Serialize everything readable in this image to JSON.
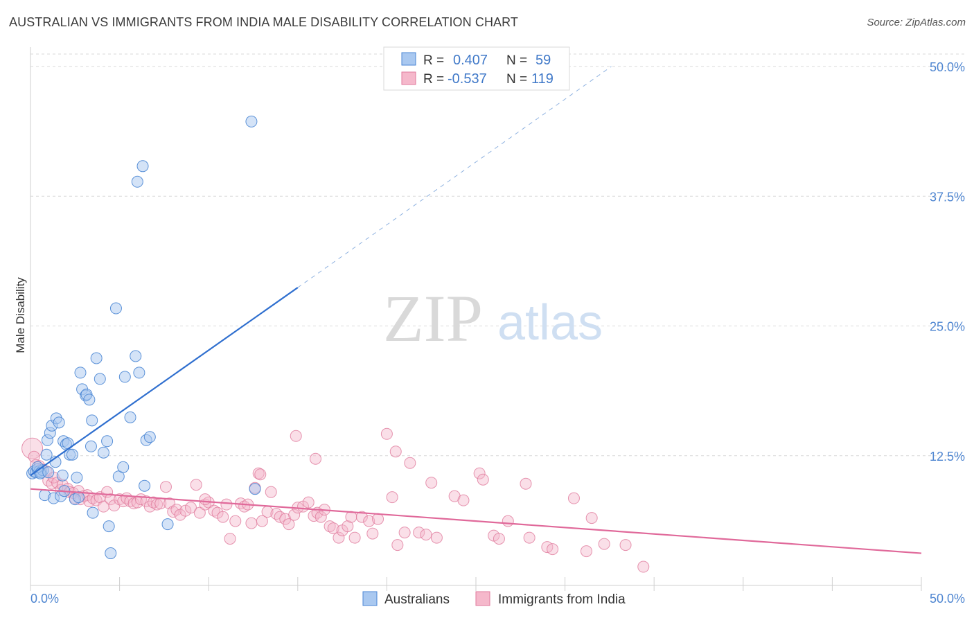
{
  "title": "AUSTRALIAN VS IMMIGRANTS FROM INDIA MALE DISABILITY CORRELATION CHART",
  "source": "Source: ZipAtlas.com",
  "watermark": {
    "zip": "ZIP",
    "atlas": "atlas"
  },
  "colors": {
    "blue_fill": "#a9c8f0",
    "blue_stroke": "#4a86d4",
    "blue_line": "#2f6fcf",
    "pink_fill": "#f5b8cb",
    "pink_stroke": "#e07a9c",
    "pink_line": "#e0699a",
    "tick_text": "#4f86d1",
    "grid": "#d8d8d8"
  },
  "legend": {
    "row1": {
      "r_label": "R =",
      "r_value": "0.407",
      "n_label": "N =",
      "n_value": "59"
    },
    "row2": {
      "r_label": "R =",
      "r_value": "-0.537",
      "n_label": "N =",
      "n_value": "119"
    }
  },
  "bottom_legend": {
    "series1": "Australians",
    "series2": "Immigrants from India"
  },
  "chart_data": {
    "type": "scatter",
    "title": "AUSTRALIAN VS IMMIGRANTS FROM INDIA MALE DISABILITY CORRELATION CHART",
    "xlabel": "",
    "ylabel": "Male Disability",
    "xlim": [
      0,
      50
    ],
    "ylim": [
      0,
      50
    ],
    "x_tick_labels": [
      "0.0%",
      "50.0%"
    ],
    "y_ticks": [
      12.5,
      25.0,
      37.5,
      50.0
    ],
    "y_tick_labels": [
      "12.5%",
      "25.0%",
      "37.5%",
      "50.0%"
    ],
    "grid": true,
    "legend_position": "top-center",
    "series": [
      {
        "name": "Australians",
        "r": 0.407,
        "n": 59,
        "trend": {
          "x0": 0,
          "y0": 10.6,
          "x1": 15,
          "y1": 28.7,
          "dashed_to_x": 32.6,
          "dashed_to_y": 50.0
        },
        "points": [
          [
            0.1,
            10.8
          ],
          [
            0.2,
            11.0
          ],
          [
            0.3,
            10.9
          ],
          [
            0.4,
            11.2
          ],
          [
            0.5,
            11.0
          ],
          [
            0.6,
            10.9
          ],
          [
            0.7,
            11.1
          ],
          [
            0.4,
            11.4
          ],
          [
            0.8,
            8.7
          ],
          [
            0.9,
            12.6
          ],
          [
            0.95,
            14.0
          ],
          [
            1.1,
            14.7
          ],
          [
            1.2,
            15.4
          ],
          [
            1.3,
            8.4
          ],
          [
            1.4,
            11.9
          ],
          [
            1.45,
            16.1
          ],
          [
            1.6,
            15.7
          ],
          [
            1.7,
            8.6
          ],
          [
            1.8,
            10.6
          ],
          [
            1.9,
            9.1
          ],
          [
            1.85,
            13.9
          ],
          [
            2.0,
            13.6
          ],
          [
            2.1,
            13.7
          ],
          [
            2.2,
            12.6
          ],
          [
            2.35,
            12.6
          ],
          [
            2.5,
            8.3
          ],
          [
            2.6,
            10.4
          ],
          [
            2.7,
            8.5
          ],
          [
            2.8,
            20.5
          ],
          [
            2.9,
            18.9
          ],
          [
            3.1,
            18.3
          ],
          [
            3.15,
            18.4
          ],
          [
            3.3,
            17.9
          ],
          [
            3.45,
            15.9
          ],
          [
            3.4,
            13.4
          ],
          [
            3.5,
            7.0
          ],
          [
            3.7,
            21.9
          ],
          [
            3.9,
            19.9
          ],
          [
            4.1,
            12.8
          ],
          [
            4.3,
            13.9
          ],
          [
            4.4,
            5.7
          ],
          [
            4.5,
            3.1
          ],
          [
            4.8,
            26.7
          ],
          [
            4.95,
            10.5
          ],
          [
            5.2,
            11.4
          ],
          [
            5.3,
            20.1
          ],
          [
            5.6,
            16.2
          ],
          [
            5.9,
            22.1
          ],
          [
            6.1,
            20.5
          ],
          [
            6.0,
            38.9
          ],
          [
            6.3,
            40.4
          ],
          [
            6.4,
            9.6
          ],
          [
            6.5,
            14.0
          ],
          [
            6.7,
            14.3
          ],
          [
            7.7,
            5.9
          ],
          [
            12.4,
            44.7
          ],
          [
            12.6,
            9.3
          ],
          [
            0.55,
            10.8
          ],
          [
            1.0,
            10.9
          ]
        ]
      },
      {
        "name": "Immigrants from India",
        "r": -0.537,
        "n": 119,
        "trend": {
          "x0": 0,
          "y0": 9.3,
          "x1": 50,
          "y1": 3.1
        },
        "points": [
          [
            0.1,
            13.2
          ],
          [
            0.2,
            12.4
          ],
          [
            0.3,
            11.6
          ],
          [
            0.5,
            11.5
          ],
          [
            0.6,
            11.2
          ],
          [
            0.9,
            11.0
          ],
          [
            1.0,
            10.1
          ],
          [
            1.2,
            9.8
          ],
          [
            1.3,
            10.4
          ],
          [
            1.5,
            9.9
          ],
          [
            1.7,
            9.2
          ],
          [
            1.8,
            9.7
          ],
          [
            2.1,
            9.3
          ],
          [
            2.2,
            9.0
          ],
          [
            2.4,
            8.9
          ],
          [
            2.5,
            8.4
          ],
          [
            2.7,
            9.1
          ],
          [
            2.8,
            8.3
          ],
          [
            3.0,
            8.6
          ],
          [
            3.2,
            8.7
          ],
          [
            3.3,
            8.1
          ],
          [
            3.5,
            8.4
          ],
          [
            3.7,
            8.2
          ],
          [
            3.9,
            8.5
          ],
          [
            4.1,
            7.6
          ],
          [
            4.3,
            9.0
          ],
          [
            4.5,
            8.3
          ],
          [
            4.7,
            7.7
          ],
          [
            5.0,
            8.3
          ],
          [
            5.2,
            8.1
          ],
          [
            5.4,
            8.4
          ],
          [
            5.6,
            8.1
          ],
          [
            5.8,
            7.9
          ],
          [
            6.0,
            8.0
          ],
          [
            6.2,
            8.3
          ],
          [
            6.5,
            8.1
          ],
          [
            6.7,
            7.6
          ],
          [
            6.9,
            8.0
          ],
          [
            7.1,
            7.8
          ],
          [
            7.3,
            7.9
          ],
          [
            7.6,
            9.5
          ],
          [
            7.8,
            7.9
          ],
          [
            8.0,
            7.1
          ],
          [
            8.2,
            7.3
          ],
          [
            8.4,
            6.8
          ],
          [
            8.7,
            7.2
          ],
          [
            9.0,
            7.5
          ],
          [
            9.3,
            9.7
          ],
          [
            9.5,
            7.0
          ],
          [
            9.8,
            7.8
          ],
          [
            10.0,
            8.0
          ],
          [
            10.3,
            7.2
          ],
          [
            10.5,
            7.0
          ],
          [
            10.8,
            6.6
          ],
          [
            11.0,
            7.8
          ],
          [
            11.2,
            4.5
          ],
          [
            11.5,
            6.2
          ],
          [
            11.8,
            7.9
          ],
          [
            12.0,
            7.6
          ],
          [
            12.2,
            7.8
          ],
          [
            12.4,
            6.0
          ],
          [
            12.6,
            9.4
          ],
          [
            12.8,
            10.8
          ],
          [
            13.0,
            6.2
          ],
          [
            13.3,
            7.1
          ],
          [
            13.5,
            9.0
          ],
          [
            13.8,
            6.9
          ],
          [
            14.0,
            6.6
          ],
          [
            14.3,
            6.4
          ],
          [
            14.5,
            5.9
          ],
          [
            14.8,
            6.8
          ],
          [
            15.0,
            7.5
          ],
          [
            15.3,
            7.6
          ],
          [
            15.6,
            8.0
          ],
          [
            15.9,
            6.7
          ],
          [
            16.1,
            7.0
          ],
          [
            16.3,
            6.6
          ],
          [
            16.5,
            7.3
          ],
          [
            16.8,
            5.7
          ],
          [
            17.0,
            5.5
          ],
          [
            17.3,
            4.6
          ],
          [
            17.5,
            5.3
          ],
          [
            17.8,
            5.7
          ],
          [
            18.0,
            6.6
          ],
          [
            18.2,
            4.6
          ],
          [
            18.6,
            6.6
          ],
          [
            19.0,
            6.2
          ],
          [
            19.2,
            5.0
          ],
          [
            19.5,
            6.4
          ],
          [
            20.0,
            14.6
          ],
          [
            20.3,
            8.5
          ],
          [
            20.6,
            3.9
          ],
          [
            21.0,
            5.1
          ],
          [
            21.3,
            11.8
          ],
          [
            21.8,
            5.1
          ],
          [
            22.2,
            4.9
          ],
          [
            22.5,
            9.9
          ],
          [
            22.8,
            4.6
          ],
          [
            23.8,
            8.6
          ],
          [
            24.3,
            8.2
          ],
          [
            25.2,
            10.8
          ],
          [
            25.4,
            10.2
          ],
          [
            26.0,
            4.8
          ],
          [
            26.3,
            4.5
          ],
          [
            26.8,
            6.2
          ],
          [
            27.8,
            9.8
          ],
          [
            28.0,
            4.6
          ],
          [
            29.0,
            3.7
          ],
          [
            29.3,
            3.5
          ],
          [
            30.5,
            8.4
          ],
          [
            31.2,
            3.3
          ],
          [
            31.5,
            6.5
          ],
          [
            32.2,
            4.0
          ],
          [
            33.4,
            3.9
          ],
          [
            34.4,
            1.8
          ],
          [
            16.0,
            12.2
          ],
          [
            12.9,
            10.7
          ],
          [
            9.8,
            8.3
          ],
          [
            14.9,
            14.4
          ],
          [
            20.5,
            12.9
          ]
        ]
      }
    ]
  }
}
